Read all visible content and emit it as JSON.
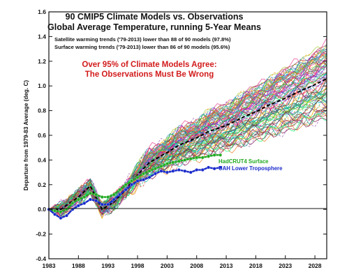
{
  "chart_data": {
    "type": "line",
    "title_line1": "90 CMIP5 Climate Models vs. Observations",
    "title_line2": "Global Average Temperature, running 5-Year Means",
    "note_line1": "Satellite warming trends ('79-2013) lower than 88 of 90 models (97.8%)",
    "note_line2": "Surface warming trends ('79-2013) lower than 86 of 90 models (95.6%)",
    "claim_line1": "Over 95% of Climate Models Agree:",
    "claim_line2": "The Observations Must Be Wrong",
    "ylabel": "Departure from 1979-83 Average (deg. C)",
    "xlim": [
      1983,
      2030
    ],
    "ylim": [
      -0.4,
      1.6
    ],
    "x_ticks": [
      1983,
      1988,
      1993,
      1998,
      2003,
      2008,
      2013,
      2018,
      2023,
      2028
    ],
    "x_tick_labels": [
      "1983",
      "1988",
      "1993",
      "1998",
      "2003",
      "2008",
      "2013",
      "2018",
      "2023",
      "2028"
    ],
    "y_ticks": [
      -0.4,
      -0.2,
      0.0,
      0.2,
      0.4,
      0.6,
      0.8,
      1.0,
      1.2,
      1.4,
      1.6
    ],
    "y_tick_labels": [
      "-0.4",
      "-0.2",
      "0.0",
      "0.2",
      "0.4",
      "0.6",
      "0.8",
      "1.0",
      "1.2",
      "1.4",
      "1.6"
    ],
    "grid": false,
    "model_mean": {
      "x": [
        1983,
        1985,
        1988,
        1990,
        1992,
        1994,
        1996,
        1998,
        2000,
        2003,
        2005,
        2008,
        2010,
        2013,
        2016,
        2018,
        2020,
        2023,
        2026,
        2028,
        2030
      ],
      "values": [
        0.0,
        0.0,
        0.1,
        0.19,
        0.0,
        0.06,
        0.16,
        0.28,
        0.38,
        0.46,
        0.52,
        0.58,
        0.63,
        0.68,
        0.75,
        0.79,
        0.84,
        0.9,
        0.97,
        1.01,
        1.06
      ]
    },
    "model_runs": {
      "count": 90,
      "years": [
        1983,
        2030
      ],
      "final_range": [
        0.55,
        1.58
      ]
    },
    "series": [
      {
        "name": "HadCRUT4 Surface",
        "color": "#22aa22",
        "x": [
          1983,
          1984,
          1985,
          1986,
          1987,
          1988,
          1989,
          1990,
          1991,
          1992,
          1993,
          1994,
          1995,
          1996,
          1997,
          1998,
          1999,
          2000,
          2001,
          2002,
          2003,
          2004,
          2005,
          2006,
          2007,
          2008,
          2009,
          2010,
          2011,
          2012
        ],
        "values": [
          0.0,
          -0.01,
          -0.02,
          0.0,
          0.05,
          0.08,
          0.1,
          0.13,
          0.12,
          0.1,
          0.1,
          0.12,
          0.16,
          0.2,
          0.23,
          0.26,
          0.29,
          0.31,
          0.33,
          0.35,
          0.37,
          0.38,
          0.39,
          0.4,
          0.41,
          0.42,
          0.42,
          0.43,
          0.44,
          0.44
        ]
      },
      {
        "name": "UAH Lower Troposphere",
        "color": "#1a2bcc",
        "x": [
          1983,
          1984,
          1985,
          1986,
          1987,
          1988,
          1989,
          1990,
          1991,
          1992,
          1993,
          1994,
          1995,
          1996,
          1997,
          1998,
          1999,
          2000,
          2001,
          2002,
          2003,
          2004,
          2005,
          2006,
          2007,
          2008,
          2009,
          2010,
          2011,
          2012
        ],
        "values": [
          0.0,
          -0.04,
          -0.07,
          -0.05,
          0.0,
          0.03,
          0.05,
          0.08,
          0.07,
          0.04,
          0.04,
          0.08,
          0.12,
          0.16,
          0.2,
          0.23,
          0.24,
          0.26,
          0.29,
          0.31,
          0.3,
          0.31,
          0.32,
          0.31,
          0.3,
          0.32,
          0.32,
          0.34,
          0.33,
          0.34
        ]
      }
    ]
  }
}
